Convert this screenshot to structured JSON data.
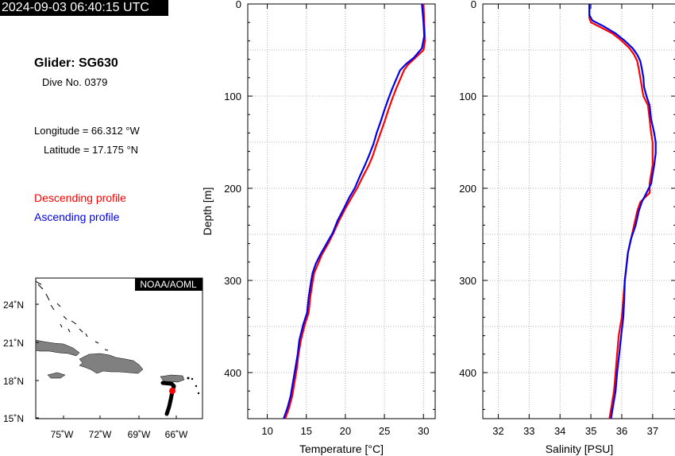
{
  "header": {
    "timestamp": "2024-09-03 06:40:15 UTC"
  },
  "info": {
    "glider": "Glider: SG630",
    "dive": "Dive No. 0379",
    "longitude": "Longitude = 66.312 °W",
    "latitude": "Latitude = 17.175 °N"
  },
  "legend": {
    "descending": "Descending profile",
    "ascending": "Ascending profile",
    "descending_color": "#ff0000",
    "ascending_color": "#0000ee"
  },
  "map": {
    "badge": "NOAA/AOML",
    "lat_ticks": [
      "24˚N",
      "21˚N",
      "18˚N",
      "15˚N"
    ],
    "lon_ticks": [
      "75˚W",
      "72˚W",
      "69˚W",
      "66˚W"
    ],
    "land_color": "#808080",
    "track_color": "#000000",
    "position_color": "#ff0000"
  },
  "chart_data": [
    {
      "type": "line",
      "xlabel": "Temperature [°C]",
      "ylabel": "Depth [m]",
      "xlim": [
        7.5,
        31.5
      ],
      "ylim": [
        450,
        0
      ],
      "xticks": [
        10,
        15,
        20,
        25,
        30
      ],
      "yticks": [
        0,
        100,
        200,
        300,
        400
      ],
      "grid": true,
      "series": [
        {
          "name": "Descending profile",
          "color": "#ff0000",
          "points": [
            [
              30.0,
              0
            ],
            [
              30.1,
              20
            ],
            [
              30.2,
              40
            ],
            [
              30.0,
              50
            ],
            [
              29.0,
              58
            ],
            [
              28.0,
              66
            ],
            [
              27.5,
              72
            ],
            [
              27.0,
              82
            ],
            [
              26.5,
              92
            ],
            [
              26.0,
              103
            ],
            [
              25.5,
              115
            ],
            [
              25.0,
              128
            ],
            [
              24.5,
              140
            ],
            [
              24.0,
              152
            ],
            [
              23.5,
              165
            ],
            [
              23.0,
              175
            ],
            [
              22.2,
              188
            ],
            [
              21.5,
              200
            ],
            [
              20.8,
              210
            ],
            [
              20.0,
              222
            ],
            [
              19.2,
              235
            ],
            [
              18.5,
              248
            ],
            [
              17.8,
              260
            ],
            [
              17.0,
              272
            ],
            [
              16.5,
              282
            ],
            [
              16.0,
              292
            ],
            [
              15.8,
              302
            ],
            [
              15.5,
              318
            ],
            [
              15.3,
              335
            ],
            [
              14.8,
              348
            ],
            [
              14.3,
              365
            ],
            [
              14.0,
              380
            ],
            [
              13.8,
              395
            ],
            [
              13.5,
              410
            ],
            [
              13.2,
              425
            ],
            [
              12.8,
              438
            ],
            [
              12.3,
              450
            ]
          ]
        },
        {
          "name": "Ascending profile",
          "color": "#0000ee",
          "points": [
            [
              29.8,
              0
            ],
            [
              30.0,
              20
            ],
            [
              30.1,
              35
            ],
            [
              29.8,
              48
            ],
            [
              28.8,
              58
            ],
            [
              27.8,
              65
            ],
            [
              27.0,
              72
            ],
            [
              26.5,
              82
            ],
            [
              26.0,
              92
            ],
            [
              25.5,
              103
            ],
            [
              25.0,
              115
            ],
            [
              24.5,
              128
            ],
            [
              24.0,
              140
            ],
            [
              23.6,
              152
            ],
            [
              23.0,
              165
            ],
            [
              22.5,
              175
            ],
            [
              21.8,
              188
            ],
            [
              21.2,
              200
            ],
            [
              20.5,
              210
            ],
            [
              19.8,
              222
            ],
            [
              19.0,
              235
            ],
            [
              18.4,
              248
            ],
            [
              17.6,
              260
            ],
            [
              16.8,
              272
            ],
            [
              16.2,
              282
            ],
            [
              15.8,
              292
            ],
            [
              15.6,
              302
            ],
            [
              15.3,
              318
            ],
            [
              15.1,
              335
            ],
            [
              14.6,
              348
            ],
            [
              14.1,
              365
            ],
            [
              13.9,
              380
            ],
            [
              13.6,
              395
            ],
            [
              13.3,
              410
            ],
            [
              13.0,
              425
            ],
            [
              12.6,
              438
            ],
            [
              12.1,
              450
            ]
          ]
        }
      ]
    },
    {
      "type": "line",
      "xlabel": "Salinity [PSU]",
      "ylabel": "",
      "xlim": [
        31.5,
        37.75
      ],
      "ylim": [
        450,
        0
      ],
      "xticks": [
        32,
        33,
        34,
        35,
        36,
        37
      ],
      "yticks": [
        0,
        100,
        200,
        300,
        400
      ],
      "grid": true,
      "series": [
        {
          "name": "Descending profile",
          "color": "#ff0000",
          "points": [
            [
              34.95,
              0
            ],
            [
              34.95,
              15
            ],
            [
              35.0,
              20
            ],
            [
              35.3,
              25
            ],
            [
              35.7,
              32
            ],
            [
              36.0,
              40
            ],
            [
              36.25,
              48
            ],
            [
              36.4,
              55
            ],
            [
              36.5,
              62
            ],
            [
              36.55,
              70
            ],
            [
              36.6,
              80
            ],
            [
              36.65,
              90
            ],
            [
              36.7,
              100
            ],
            [
              36.85,
              110
            ],
            [
              36.9,
              125
            ],
            [
              36.95,
              140
            ],
            [
              37.0,
              150
            ],
            [
              37.0,
              162
            ],
            [
              37.0,
              175
            ],
            [
              36.95,
              185
            ],
            [
              36.9,
              195
            ],
            [
              36.9,
              205
            ],
            [
              36.6,
              215
            ],
            [
              36.5,
              225
            ],
            [
              36.4,
              240
            ],
            [
              36.3,
              255
            ],
            [
              36.2,
              270
            ],
            [
              36.15,
              285
            ],
            [
              36.1,
              300
            ],
            [
              36.05,
              320
            ],
            [
              36.0,
              340
            ],
            [
              35.9,
              360
            ],
            [
              35.85,
              380
            ],
            [
              35.8,
              400
            ],
            [
              35.75,
              420
            ],
            [
              35.65,
              440
            ],
            [
              35.6,
              450
            ]
          ]
        },
        {
          "name": "Ascending profile",
          "color": "#0000ee",
          "points": [
            [
              34.95,
              0
            ],
            [
              34.95,
              12
            ],
            [
              35.05,
              18
            ],
            [
              35.4,
              24
            ],
            [
              35.8,
              32
            ],
            [
              36.1,
              40
            ],
            [
              36.35,
              48
            ],
            [
              36.5,
              55
            ],
            [
              36.6,
              62
            ],
            [
              36.65,
              70
            ],
            [
              36.7,
              80
            ],
            [
              36.72,
              90
            ],
            [
              36.8,
              100
            ],
            [
              36.9,
              110
            ],
            [
              36.95,
              125
            ],
            [
              37.05,
              140
            ],
            [
              37.1,
              150
            ],
            [
              37.1,
              162
            ],
            [
              37.05,
              175
            ],
            [
              37.0,
              185
            ],
            [
              36.95,
              195
            ],
            [
              36.8,
              205
            ],
            [
              36.65,
              215
            ],
            [
              36.55,
              225
            ],
            [
              36.45,
              240
            ],
            [
              36.3,
              255
            ],
            [
              36.2,
              270
            ],
            [
              36.15,
              285
            ],
            [
              36.1,
              300
            ],
            [
              36.08,
              320
            ],
            [
              36.05,
              340
            ],
            [
              35.98,
              360
            ],
            [
              35.92,
              380
            ],
            [
              35.85,
              400
            ],
            [
              35.8,
              420
            ],
            [
              35.7,
              440
            ],
            [
              35.65,
              450
            ]
          ]
        }
      ]
    }
  ]
}
